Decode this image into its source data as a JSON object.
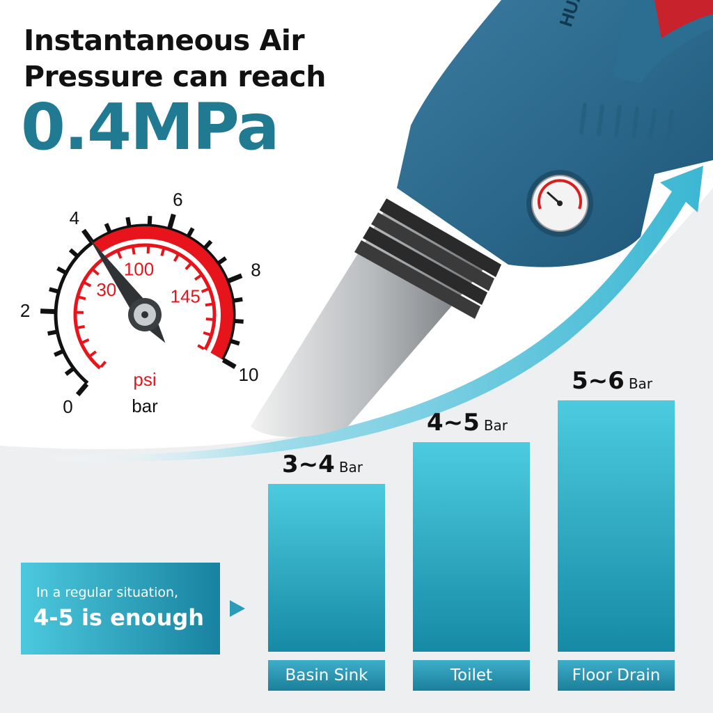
{
  "headline": {
    "line1": "Instantaneous Air",
    "line2": "Pressure can reach",
    "value": "0.4MPa"
  },
  "gauge": {
    "bar_ticks": [
      "0",
      "2",
      "4",
      "6",
      "8",
      "10"
    ],
    "psi_ticks": [
      "30",
      "100",
      "145"
    ],
    "psi_label": "psi",
    "bar_label": "bar",
    "needle_value_bar": 4
  },
  "tool_brand": "HUA",
  "note": {
    "line1": "In a regular situation,",
    "line2": "4-5 is enough"
  },
  "chart_data": {
    "type": "bar",
    "categories": [
      "Basin Sink",
      "Toilet",
      "Floor Drain"
    ],
    "series": [
      {
        "values": [
          [
            3,
            4
          ],
          [
            4,
            5
          ],
          [
            5,
            6
          ]
        ]
      }
    ],
    "value_labels": [
      "3~4",
      "4~5",
      "5~6"
    ],
    "unit": "Bar"
  },
  "colors": {
    "accent": "#1f7a92",
    "bar_top": "#4ccbe0",
    "bar_bottom": "#168aa5",
    "gauge_red": "#e8141b"
  }
}
